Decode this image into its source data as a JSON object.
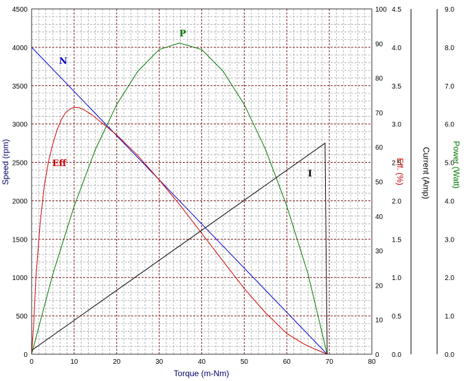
{
  "chart_data": {
    "type": "line",
    "xlabel": "Torque (m-Nm)",
    "xlim": [
      0,
      80
    ],
    "x_ticks": [
      "0",
      "10",
      "20",
      "30",
      "40",
      "50",
      "60",
      "70",
      "80"
    ],
    "grid": true,
    "axes": {
      "speed": {
        "label": "Speed (rpm)",
        "range": [
          0,
          4500
        ],
        "ticks": [
          "0",
          "500",
          "1000",
          "1500",
          "2000",
          "2500",
          "3000",
          "3500",
          "4000",
          "4500"
        ]
      },
      "efficiency": {
        "label": "Eff. (%)",
        "range": [
          0,
          100
        ],
        "ticks": [
          "0",
          "10",
          "20",
          "30",
          "40",
          "50",
          "60",
          "70",
          "80",
          "90",
          "100"
        ]
      },
      "current": {
        "label": "Current (Amp)",
        "range": [
          0,
          4.5
        ],
        "ticks": [
          "0.0",
          "0.5",
          "1.0",
          "1.5",
          "2.0",
          "2.5",
          "3.0",
          "3.5",
          "4.0",
          "4.5"
        ]
      },
      "power": {
        "label": "Power (Watt)",
        "range": [
          0,
          9
        ],
        "ticks": [
          "0.0",
          "1.0",
          "2.0",
          "3.0",
          "4.0",
          "5.0",
          "6.0",
          "7.0",
          "8.0",
          "9.0"
        ]
      }
    },
    "series": [
      {
        "name": "N",
        "axis": "speed",
        "color": "#0000cc",
        "x": [
          0,
          69.5
        ],
        "y": [
          4000,
          0
        ]
      },
      {
        "name": "Eff",
        "axis": "efficiency",
        "color": "#cc0000",
        "x": [
          0,
          0.5,
          1,
          2,
          3,
          4,
          5,
          6,
          7,
          8,
          9,
          10,
          11,
          12,
          14,
          16,
          18,
          20,
          25,
          30,
          35,
          40,
          45,
          50,
          55,
          60,
          62,
          64,
          66,
          68,
          69,
          69.5
        ],
        "y": [
          0,
          9,
          22,
          38,
          49,
          56,
          61,
          65,
          68,
          70,
          71,
          71.5,
          71.5,
          71,
          69.5,
          67.5,
          65.5,
          63.5,
          57.5,
          50.5,
          43,
          35,
          27,
          19,
          12,
          6,
          4.5,
          3,
          1.8,
          0.8,
          0.3,
          0
        ]
      },
      {
        "name": "P",
        "axis": "power",
        "color": "#007700",
        "x": [
          0,
          5,
          10,
          15,
          20,
          25,
          30,
          34.75,
          40,
          45,
          50,
          55,
          60,
          65,
          69.5
        ],
        "y": [
          0,
          2.09,
          3.86,
          5.34,
          6.51,
          7.38,
          7.94,
          8.11,
          7.94,
          7.38,
          6.51,
          5.34,
          3.86,
          2.09,
          0
        ]
      },
      {
        "name": "I",
        "axis": "current",
        "color": "#000000",
        "x": [
          0,
          69,
          69.5
        ],
        "y": [
          0.05,
          2.75,
          0
        ]
      }
    ]
  }
}
